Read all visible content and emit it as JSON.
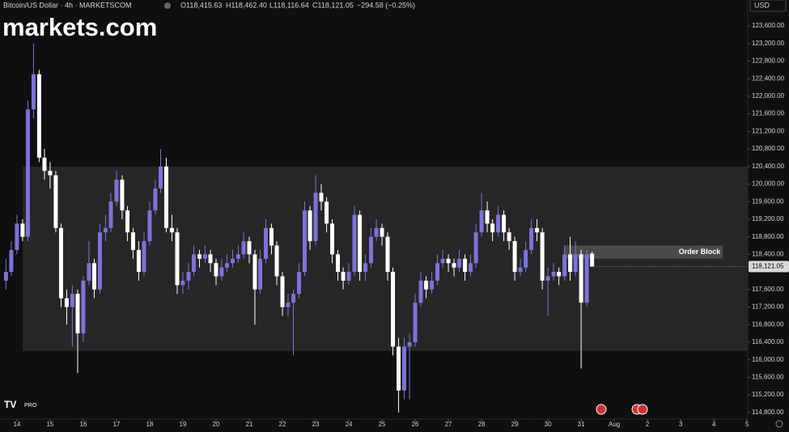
{
  "header": {
    "symbol": "Bitcoin/US Dollar · 4h · MARKETSCOM",
    "open": "O118,415.63",
    "high": "H118,462.40",
    "low": "L118,116.64",
    "close": "C118,121.05",
    "change": "−294.58 (−0.25%)",
    "currency": "USD",
    "logo": "markets.com",
    "badge": "PRO"
  },
  "chart_data": {
    "type": "candlestick",
    "up_color": "#7b73d9",
    "down_color": "#ffffff",
    "xlim": [
      13.49,
      36.02
    ],
    "xticks": [
      14,
      15,
      16,
      17,
      18,
      19,
      20,
      21,
      22,
      23,
      24,
      25,
      26,
      27,
      28,
      29,
      30,
      31,
      {
        "value": 32,
        "label": "Aug"
      },
      {
        "value": 33,
        "label": "2"
      },
      {
        "value": 34,
        "label": "3"
      },
      {
        "value": 35,
        "label": "4"
      },
      {
        "value": 36,
        "label": "5"
      }
    ],
    "ylim": [
      114650,
      124190
    ],
    "yticks": [
      {
        "value": 123600,
        "label": "123,600.00"
      },
      {
        "value": 123200,
        "label": "123,200.00"
      },
      {
        "value": 122800,
        "label": "122,800.00"
      },
      {
        "value": 122400,
        "label": "122,400.00"
      },
      {
        "value": 122000,
        "label": "122,000.00"
      },
      {
        "value": 121600,
        "label": "121,600.00"
      },
      {
        "value": 121200,
        "label": "121,200.00"
      },
      {
        "value": 120800,
        "label": "120,800.00"
      },
      {
        "value": 120400,
        "label": "120,400.00"
      },
      {
        "value": 120000,
        "label": "120,000.00"
      },
      {
        "value": 119600,
        "label": "119,600.00"
      },
      {
        "value": 119200,
        "label": "119,200.00"
      },
      {
        "value": 118800,
        "label": "118,800.00"
      },
      {
        "value": 118400,
        "label": "118,400.00"
      },
      {
        "value": 117600,
        "label": "117,600.00"
      },
      {
        "value": 117200,
        "label": "117,200.00"
      },
      {
        "value": 116800,
        "label": "116,800.00"
      },
      {
        "value": 116400,
        "label": "116,400.00"
      },
      {
        "value": 116000,
        "label": "116,000.00"
      },
      {
        "value": 115600,
        "label": "115,600.00"
      },
      {
        "value": 115200,
        "label": "115,200.00"
      },
      {
        "value": 114800,
        "label": "114,800.00"
      }
    ],
    "x": [
      13.67,
      13.83,
      14,
      14.17,
      14.33,
      14.5,
      14.67,
      14.83,
      15,
      15.17,
      15.33,
      15.5,
      15.67,
      15.83,
      16,
      16.17,
      16.33,
      16.5,
      16.67,
      16.83,
      17,
      17.17,
      17.33,
      17.5,
      17.67,
      17.83,
      18,
      18.17,
      18.33,
      18.5,
      18.67,
      18.83,
      19,
      19.17,
      19.33,
      19.5,
      19.67,
      19.83,
      20,
      20.17,
      20.33,
      20.5,
      20.67,
      20.83,
      21,
      21.17,
      21.33,
      21.5,
      21.67,
      21.83,
      22,
      22.17,
      22.33,
      22.5,
      22.67,
      22.83,
      23,
      23.17,
      23.33,
      23.5,
      23.67,
      23.83,
      24,
      24.17,
      24.33,
      24.5,
      24.67,
      24.83,
      25,
      25.17,
      25.33,
      25.5,
      25.67,
      25.83,
      26,
      26.17,
      26.33,
      26.5,
      26.67,
      26.83,
      27,
      27.17,
      27.33,
      27.5,
      27.67,
      27.83,
      28,
      28.17,
      28.33,
      28.5,
      28.67,
      28.83,
      29,
      29.17,
      29.33,
      29.5,
      29.67,
      29.83,
      30,
      30.17,
      30.33,
      30.5,
      30.67,
      30.83,
      31,
      31.17,
      31.33
    ],
    "candles": [
      [
        117800,
        118300,
        117600,
        118000
      ],
      [
        118000,
        118700,
        117900,
        118500
      ],
      [
        118500,
        119300,
        118400,
        119100
      ],
      [
        119100,
        119200,
        118700,
        118800
      ],
      [
        118800,
        121900,
        118700,
        121700
      ],
      [
        121700,
        123200,
        121500,
        122500
      ],
      [
        122500,
        122600,
        120500,
        120600
      ],
      [
        120600,
        120800,
        120100,
        120300
      ],
      [
        120300,
        120500,
        119900,
        120200
      ],
      [
        120200,
        120300,
        118900,
        119000
      ],
      [
        119000,
        119100,
        117200,
        117400
      ],
      [
        117400,
        117600,
        116800,
        117200
      ],
      [
        117200,
        117700,
        116300,
        117500
      ],
      [
        117500,
        117600,
        115700,
        116600
      ],
      [
        116600,
        117900,
        116400,
        117800
      ],
      [
        117800,
        118700,
        117700,
        118200
      ],
      [
        118200,
        118300,
        117400,
        117600
      ],
      [
        117600,
        119100,
        117500,
        118900
      ],
      [
        118900,
        119300,
        118700,
        119000
      ],
      [
        119000,
        119800,
        118900,
        119600
      ],
      [
        119600,
        120300,
        119500,
        120100
      ],
      [
        120100,
        120200,
        119200,
        119400
      ],
      [
        119400,
        119500,
        118700,
        118900
      ],
      [
        118900,
        119000,
        118300,
        118500
      ],
      [
        118500,
        118700,
        117800,
        118000
      ],
      [
        118000,
        118900,
        117900,
        118700
      ],
      [
        118700,
        119600,
        118600,
        119400
      ],
      [
        119400,
        120100,
        119300,
        119900
      ],
      [
        119900,
        120800,
        119800,
        120400
      ],
      [
        120400,
        120600,
        118900,
        119000
      ],
      [
        119000,
        119300,
        118700,
        118900
      ],
      [
        118900,
        119000,
        117500,
        117700
      ],
      [
        117700,
        118000,
        117500,
        117800
      ],
      [
        117800,
        118200,
        117600,
        118000
      ],
      [
        118000,
        118600,
        117900,
        118400
      ],
      [
        118400,
        118500,
        118100,
        118300
      ],
      [
        118300,
        118600,
        118200,
        118400
      ],
      [
        118400,
        118500,
        118000,
        118200
      ],
      [
        118200,
        118300,
        117700,
        117900
      ],
      [
        117900,
        118300,
        117800,
        118100
      ],
      [
        118100,
        118400,
        118000,
        118200
      ],
      [
        118200,
        118500,
        118100,
        118300
      ],
      [
        118300,
        118600,
        118200,
        118400
      ],
      [
        118400,
        118900,
        118300,
        118700
      ],
      [
        118700,
        118800,
        118200,
        118400
      ],
      [
        118400,
        118500,
        116800,
        117600
      ],
      [
        117600,
        118500,
        117500,
        118300
      ],
      [
        118300,
        119200,
        118200,
        119000
      ],
      [
        119000,
        119100,
        118400,
        118600
      ],
      [
        118600,
        118700,
        117700,
        117900
      ],
      [
        117900,
        118000,
        117000,
        117200
      ],
      [
        117200,
        117500,
        117000,
        117300
      ],
      [
        117300,
        117600,
        116100,
        117500
      ],
      [
        117500,
        118200,
        117400,
        118000
      ],
      [
        118000,
        119600,
        117900,
        119400
      ],
      [
        119400,
        119500,
        118500,
        118700
      ],
      [
        118700,
        120200,
        118600,
        119800
      ],
      [
        119800,
        120000,
        119400,
        119600
      ],
      [
        119600,
        119700,
        118900,
        119100
      ],
      [
        119100,
        119200,
        118200,
        118400
      ],
      [
        118400,
        118500,
        117800,
        118000
      ],
      [
        118000,
        118100,
        117600,
        117800
      ],
      [
        117800,
        118200,
        117700,
        118000
      ],
      [
        118000,
        119500,
        117900,
        119300
      ],
      [
        119300,
        119400,
        117800,
        118000
      ],
      [
        118000,
        118400,
        117800,
        118200
      ],
      [
        118200,
        119000,
        118100,
        118800
      ],
      [
        118800,
        119200,
        118700,
        119000
      ],
      [
        119000,
        119100,
        118600,
        118800
      ],
      [
        118800,
        118900,
        117800,
        118000
      ],
      [
        118000,
        118100,
        116100,
        116300
      ],
      [
        116300,
        116500,
        114800,
        115300
      ],
      [
        115300,
        116500,
        115100,
        116300
      ],
      [
        116300,
        116600,
        115100,
        116400
      ],
      [
        116400,
        117500,
        116300,
        117300
      ],
      [
        117300,
        118000,
        117200,
        117800
      ],
      [
        117800,
        117900,
        117400,
        117600
      ],
      [
        117600,
        118000,
        117500,
        117800
      ],
      [
        117800,
        118400,
        117700,
        118200
      ],
      [
        118200,
        118500,
        118100,
        118300
      ],
      [
        118300,
        118400,
        118000,
        118200
      ],
      [
        118200,
        118300,
        117900,
        118100
      ],
      [
        118100,
        118500,
        118000,
        118300
      ],
      [
        118300,
        118400,
        117800,
        118000
      ],
      [
        118000,
        118400,
        117900,
        118200
      ],
      [
        118200,
        119100,
        118100,
        118900
      ],
      [
        118900,
        119800,
        118800,
        119400
      ],
      [
        119400,
        119600,
        118900,
        119100
      ],
      [
        119100,
        119200,
        118700,
        118900
      ],
      [
        118900,
        119500,
        118800,
        119300
      ],
      [
        119300,
        119400,
        118700,
        118900
      ],
      [
        118900,
        119000,
        118500,
        118700
      ],
      [
        118700,
        118800,
        117800,
        118000
      ],
      [
        118000,
        118300,
        117900,
        118100
      ],
      [
        118100,
        118700,
        118000,
        118500
      ],
      [
        118500,
        119200,
        118400,
        119000
      ],
      [
        119000,
        119200,
        118700,
        118900
      ],
      [
        118900,
        119000,
        117600,
        117800
      ],
      [
        117800,
        118100,
        117000,
        117900
      ],
      [
        117900,
        118200,
        117800,
        118000
      ],
      [
        118000,
        118100,
        117700,
        117900
      ],
      [
        117900,
        118600,
        117800,
        118400
      ],
      [
        118400,
        118800,
        117800,
        118000
      ],
      [
        118000,
        118700,
        117900,
        118400
      ],
      [
        118400,
        118500,
        115800,
        117300
      ],
      [
        117300,
        118500,
        117200,
        118400
      ],
      [
        118415.63,
        118462.4,
        118116.64,
        118121.05
      ]
    ],
    "last_label": "118,121.05",
    "zones": [
      {
        "from": 116200,
        "to": 120400,
        "x": [
          14.17,
          36.02
        ],
        "color": "#262626"
      },
      {
        "label": "Order Block",
        "from": 118300,
        "to": 118600,
        "x": [
          30.49,
          35.27
        ],
        "color": "#4a4a4a"
      }
    ]
  }
}
